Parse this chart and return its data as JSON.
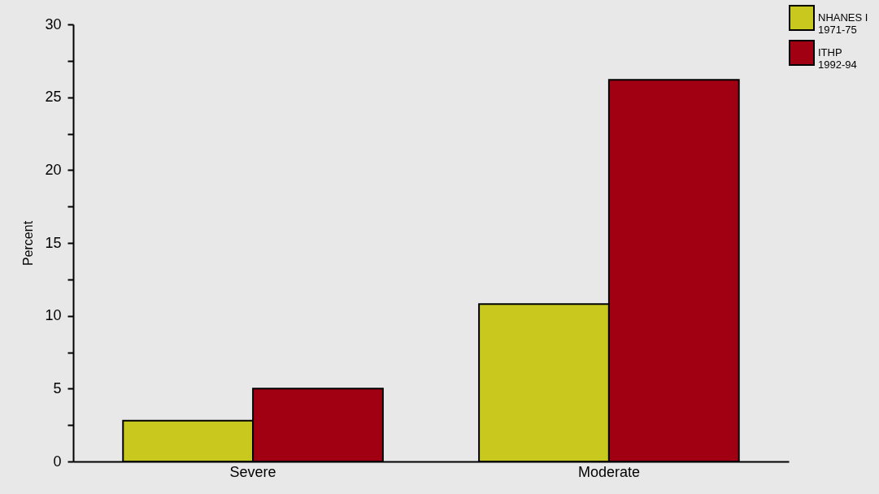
{
  "chart_data": {
    "type": "bar",
    "ylabel": "Percent",
    "categories": [
      "Severe",
      "Moderate"
    ],
    "series": [
      {
        "name": "NHANES I 1971-75",
        "color": "#c8c81e",
        "values": [
          2.8,
          10.8
        ]
      },
      {
        "name": "ITHP 1992-94",
        "color": "#a00012",
        "values": [
          5.0,
          26.2
        ]
      }
    ],
    "ylim": [
      0,
      30
    ],
    "yticks": [
      0,
      {
        "value": 2.5,
        "label": null
      },
      5,
      {
        "value": 7.5,
        "label": null
      },
      10,
      {
        "value": 12.5,
        "label": null
      },
      15,
      {
        "value": 17.5,
        "label": null
      },
      20,
      {
        "value": 22.5,
        "label": null
      },
      25,
      {
        "value": 27.5,
        "label": null
      },
      30
    ],
    "grid": false,
    "legend": "top right"
  }
}
